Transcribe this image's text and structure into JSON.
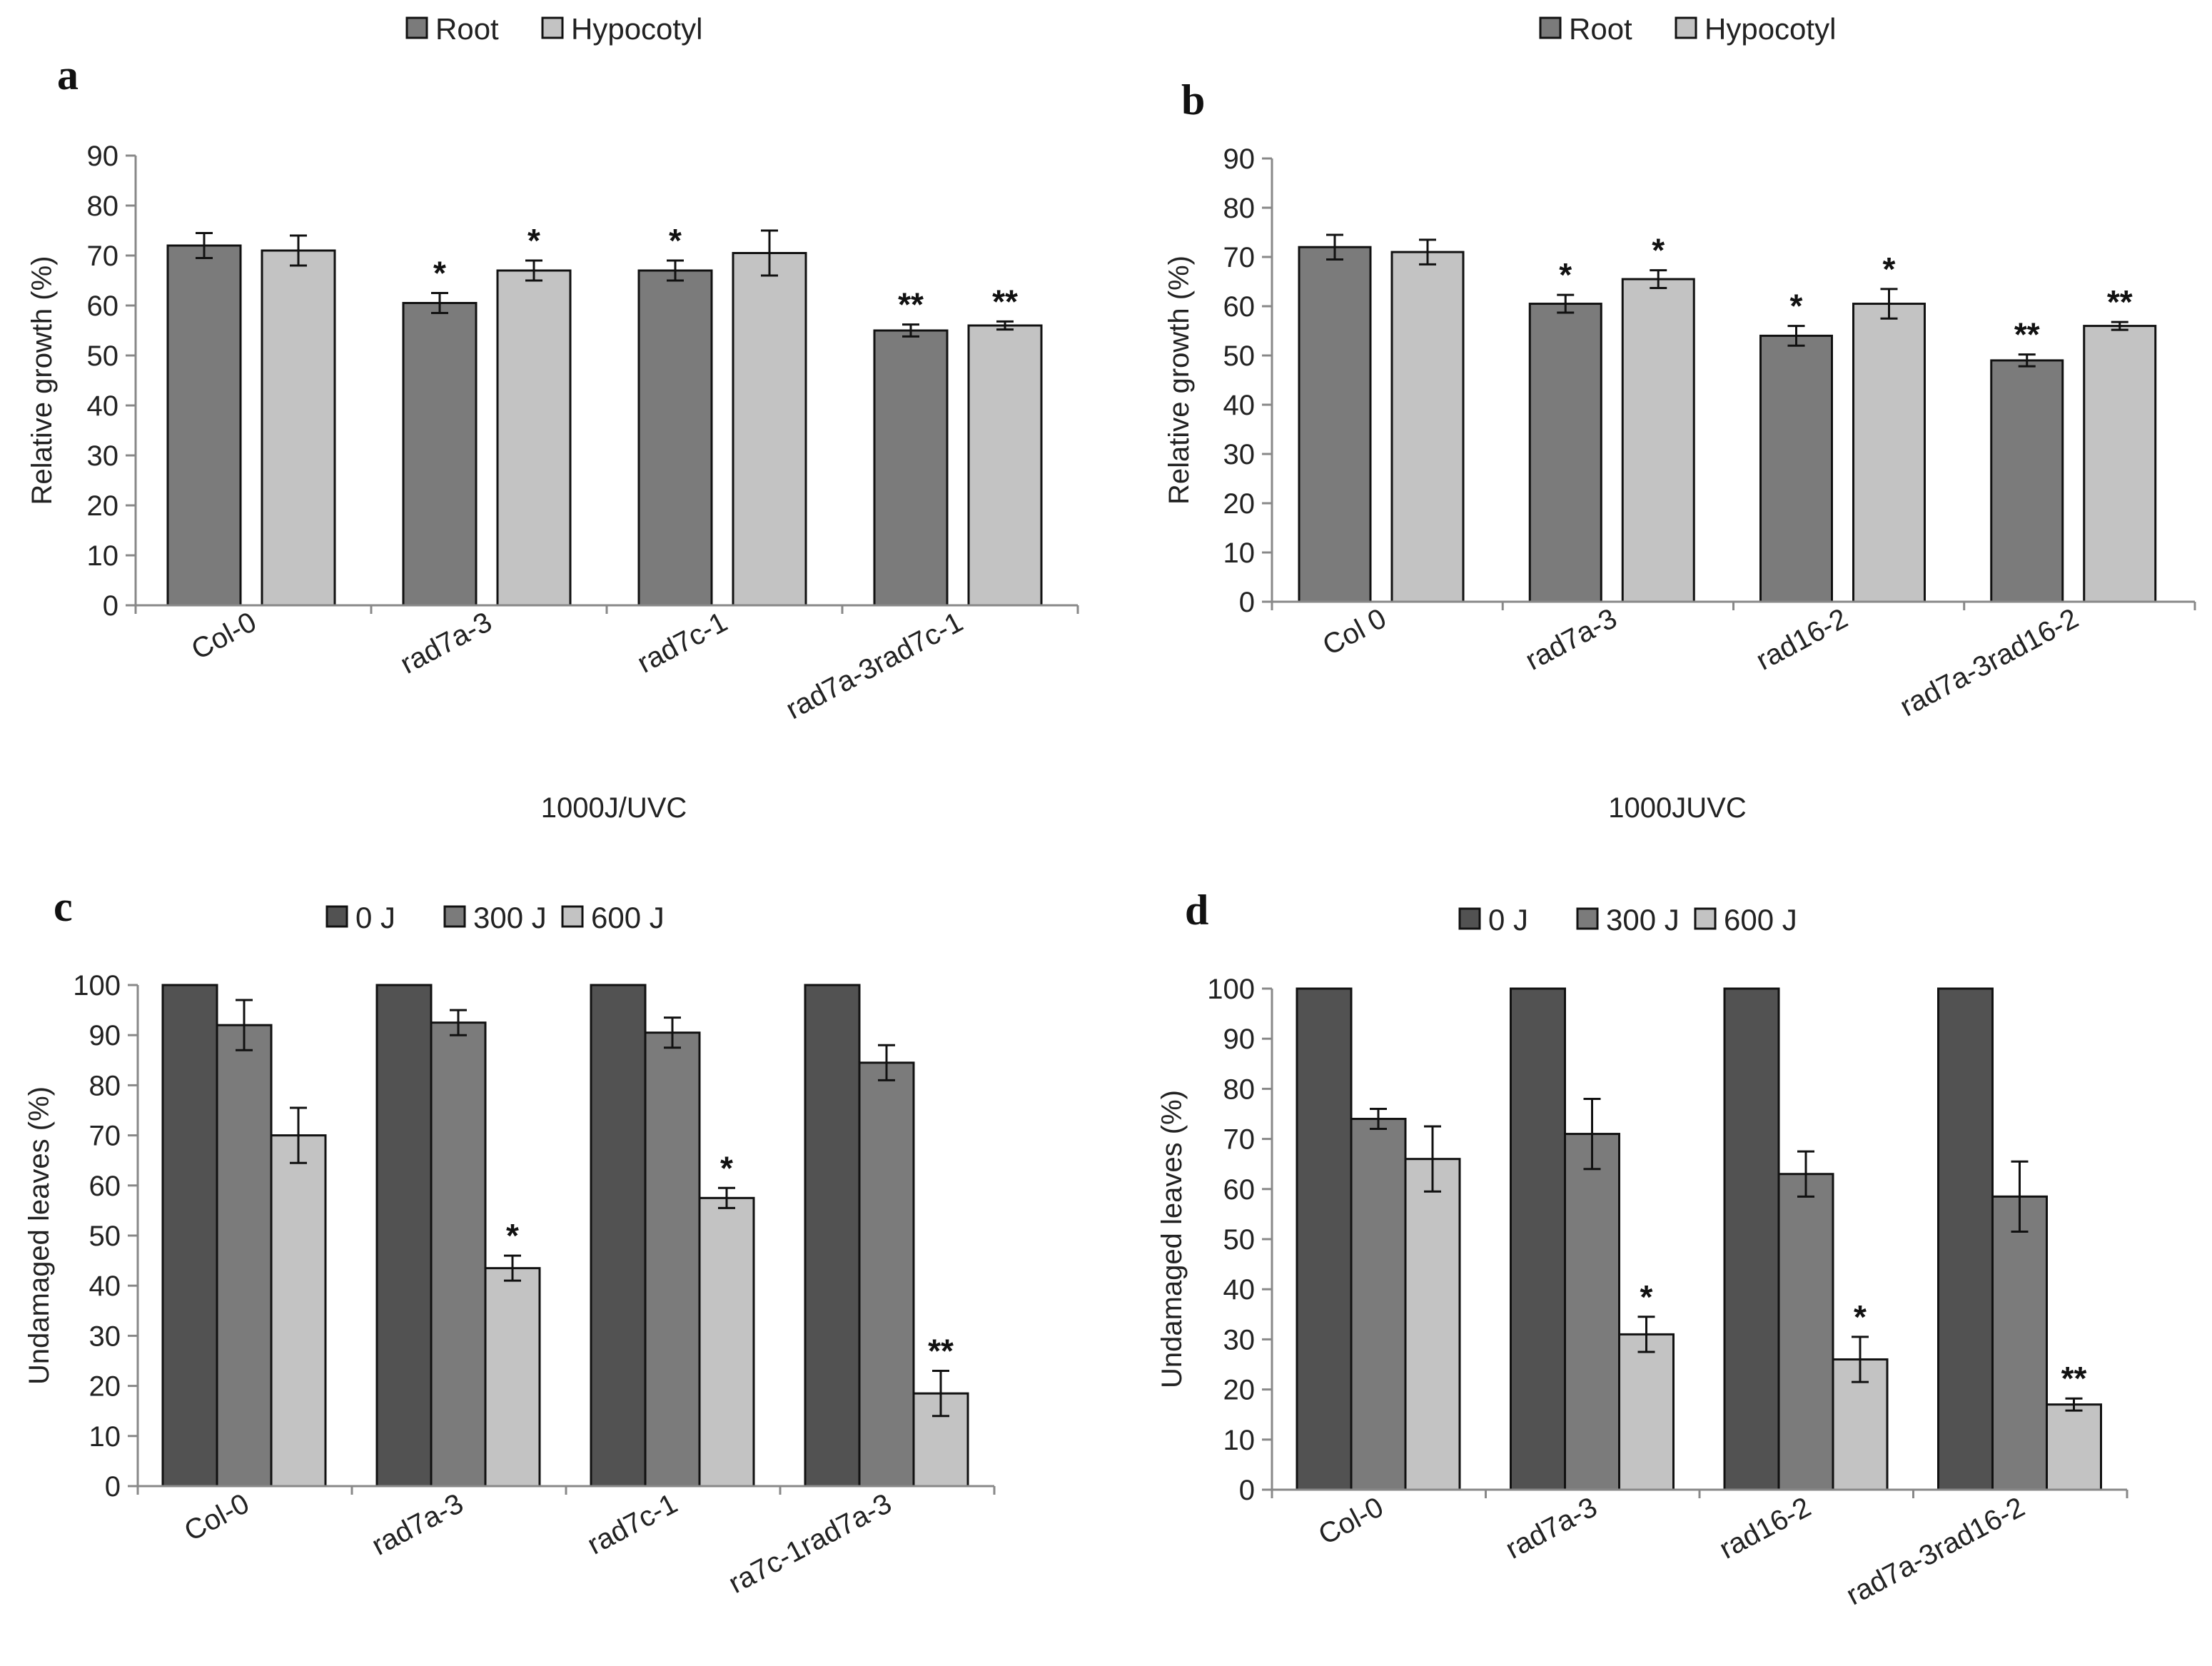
{
  "chart_data": [
    {
      "id": "a",
      "panel_label": "a",
      "type": "bar",
      "ylabel": "Relative  growth  (%)",
      "xlabel": "1000J/UVC",
      "ylim": [
        0,
        90
      ],
      "yticks": [
        0,
        10,
        20,
        30,
        40,
        50,
        60,
        70,
        80,
        90
      ],
      "categories": [
        "Col-0",
        "rad7a-3",
        "rad7c-1",
        "rad7a-3rad7c-1"
      ],
      "legend": {
        "position": "top",
        "entries": [
          "Root",
          "Hypocotyl"
        ]
      },
      "colors": [
        "#7b7b7b",
        "#c3c3c3"
      ],
      "series": [
        {
          "name": "Root",
          "values": [
            72,
            60.5,
            67,
            55
          ],
          "errors": [
            2.5,
            2,
            2,
            1.2
          ],
          "stars": [
            "",
            "*",
            "*",
            "**"
          ]
        },
        {
          "name": "Hypocotyl",
          "values": [
            71,
            67,
            70.5,
            56
          ],
          "errors": [
            3,
            2,
            4.5,
            0.8
          ],
          "stars": [
            "",
            "*",
            "",
            "**"
          ]
        }
      ]
    },
    {
      "id": "b",
      "panel_label": "b",
      "type": "bar",
      "ylabel": "Relative  growth  (%)",
      "xlabel": "1000JUVC",
      "ylim": [
        0,
        90
      ],
      "yticks": [
        0,
        10,
        20,
        30,
        40,
        50,
        60,
        70,
        80,
        90
      ],
      "categories": [
        "Col 0",
        "rad7a-3",
        "rad16-2",
        "rad7a-3rad16-2"
      ],
      "legend": {
        "position": "top",
        "entries": [
          "Root",
          "Hypocotyl"
        ]
      },
      "colors": [
        "#7b7b7b",
        "#c3c3c3"
      ],
      "series": [
        {
          "name": "Root",
          "values": [
            72,
            60.5,
            54,
            49
          ],
          "errors": [
            2.5,
            1.8,
            2,
            1.2
          ],
          "stars": [
            "",
            "*",
            "*",
            "**"
          ]
        },
        {
          "name": "Hypocotyl",
          "values": [
            71,
            65.5,
            60.5,
            56
          ],
          "errors": [
            2.5,
            1.8,
            3,
            0.8
          ],
          "stars": [
            "",
            "*",
            "*",
            "**"
          ]
        }
      ]
    },
    {
      "id": "c",
      "panel_label": "c",
      "type": "bar",
      "ylabel": "Undamaged leaves (%)",
      "xlabel": "",
      "ylim": [
        0,
        100
      ],
      "yticks": [
        0,
        10,
        20,
        30,
        40,
        50,
        60,
        70,
        80,
        90,
        100
      ],
      "categories": [
        "Col-0",
        "rad7a-3",
        "rad7c-1",
        "ra7c-1rad7a-3"
      ],
      "legend": {
        "position": "top",
        "entries": [
          "0 J",
          "300 J",
          "600 J"
        ]
      },
      "colors": [
        "#525252",
        "#7b7b7b",
        "#c3c3c3"
      ],
      "series": [
        {
          "name": "0 J",
          "values": [
            100,
            100,
            100,
            100
          ],
          "errors": [
            0,
            0,
            0,
            0
          ],
          "stars": [
            "",
            "",
            "",
            ""
          ]
        },
        {
          "name": "300 J",
          "values": [
            92,
            92.5,
            90.5,
            84.5
          ],
          "errors": [
            5,
            2.5,
            3,
            3.5
          ],
          "stars": [
            "",
            "",
            "",
            ""
          ]
        },
        {
          "name": "600 J",
          "values": [
            70,
            43.5,
            57.5,
            18.5
          ],
          "errors": [
            5.5,
            2.5,
            2,
            4.5
          ],
          "stars": [
            "",
            "*",
            "*",
            "**"
          ]
        }
      ]
    },
    {
      "id": "d",
      "panel_label": "d",
      "type": "bar",
      "ylabel": "Undamaged leaves (%)",
      "xlabel": "",
      "ylim": [
        0,
        100
      ],
      "yticks": [
        0,
        10,
        20,
        30,
        40,
        50,
        60,
        70,
        80,
        90,
        100
      ],
      "categories": [
        "Col-0",
        "rad7a-3",
        "rad16-2",
        "rad7a-3rad16-2"
      ],
      "legend": {
        "position": "top",
        "entries": [
          "0 J",
          "300 J",
          "600 J"
        ]
      },
      "colors": [
        "#525252",
        "#7b7b7b",
        "#c3c3c3"
      ],
      "series": [
        {
          "name": "0 J",
          "values": [
            100,
            100,
            100,
            100
          ],
          "errors": [
            0,
            0,
            0,
            0
          ],
          "stars": [
            "",
            "",
            "",
            ""
          ]
        },
        {
          "name": "300 J",
          "values": [
            74,
            71,
            63,
            58.5
          ],
          "errors": [
            2,
            7,
            4.5,
            7
          ],
          "stars": [
            "",
            "",
            "",
            ""
          ]
        },
        {
          "name": "600 J",
          "values": [
            66,
            31,
            26,
            17
          ],
          "errors": [
            6.5,
            3.5,
            4.5,
            1.2
          ],
          "stars": [
            "",
            "*",
            "*",
            "**"
          ]
        }
      ]
    }
  ]
}
